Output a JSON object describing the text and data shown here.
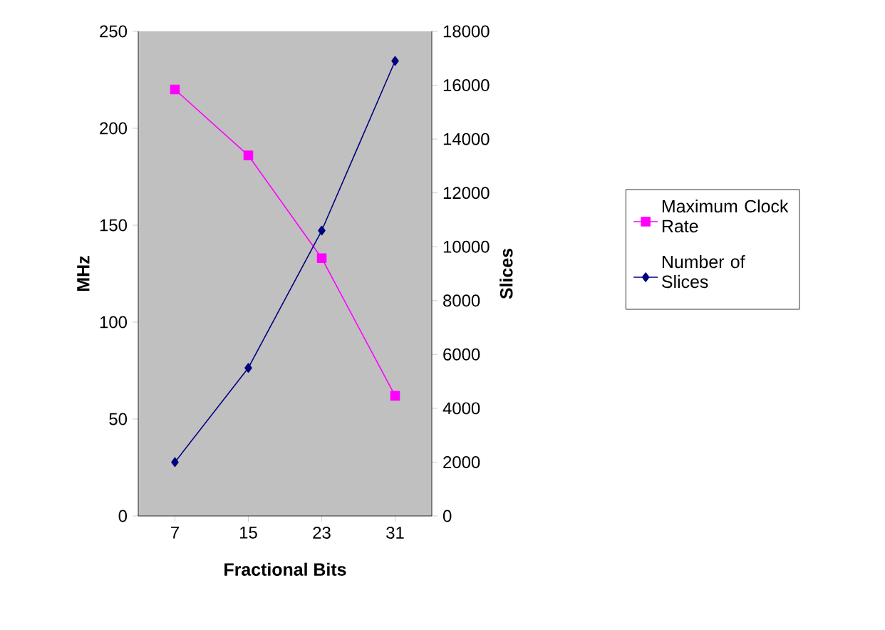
{
  "chart_data": {
    "type": "line",
    "xlabel": "Fractional Bits",
    "ylabel": "MHz",
    "y2label": "Slices",
    "categories": [
      "7",
      "15",
      "23",
      "31"
    ],
    "series": [
      {
        "name": "Maximum Clock Rate",
        "color": "#ff00ff",
        "marker": "square",
        "values": [
          220,
          186,
          133,
          62
        ]
      },
      {
        "name": "Number of Slices",
        "color": "#000080",
        "marker": "diamond",
        "axis": "y2",
        "values": [
          2000,
          5500,
          10600,
          16900
        ]
      }
    ],
    "ylim": [
      0,
      250
    ],
    "yticks": [
      0,
      50,
      100,
      150,
      200,
      250
    ],
    "y2lim": [
      0,
      18000
    ],
    "y2ticks": [
      0,
      2000,
      4000,
      6000,
      8000,
      10000,
      12000,
      14000,
      16000,
      18000
    ],
    "grid": false,
    "legend": "right"
  }
}
